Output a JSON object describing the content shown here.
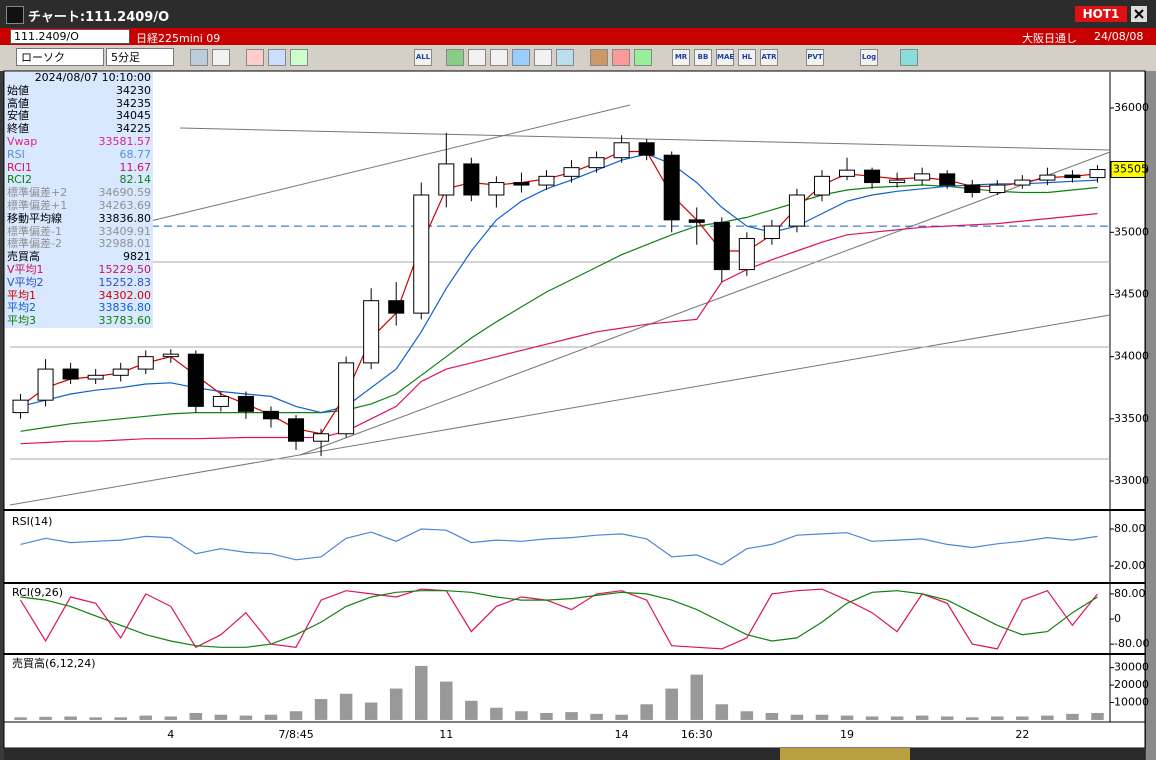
{
  "window": {
    "title": "チャート:111.2409/O",
    "hot": "HOT1"
  },
  "toolbar": {
    "symbol": "111.2409/O",
    "name": "日経225mini 09",
    "market": "大阪日通し",
    "date": "24/08/08",
    "chart_type": "ローソク",
    "interval": "5分足",
    "buttons": [
      "ALL",
      "MR",
      "BB",
      "MAE",
      "HL",
      "ATR",
      "PVT",
      "Log"
    ]
  },
  "info_panel": {
    "datetime": "2024/08/07 10:10:00",
    "rows": [
      {
        "label": "始値",
        "value": "34230",
        "color": "#000000"
      },
      {
        "label": "高値",
        "value": "34235",
        "color": "#000000"
      },
      {
        "label": "安値",
        "value": "34045",
        "color": "#000000"
      },
      {
        "label": "終値",
        "value": "34225",
        "color": "#000000"
      },
      {
        "label": "Vwap",
        "value": "33581.57",
        "color": "#e0208c"
      },
      {
        "label": "RSI",
        "value": "68.77",
        "color": "#5b8fd8"
      },
      {
        "label": "RCI1",
        "value": "11.67",
        "color": "#d01060"
      },
      {
        "label": "RCI2",
        "value": "82.14",
        "color": "#108010"
      },
      {
        "label": "標準偏差+2",
        "value": "34690.59",
        "color": "#909090"
      },
      {
        "label": "標準偏差+1",
        "value": "34263.69",
        "color": "#909090"
      },
      {
        "label": "移動平均線",
        "value": "33836.80",
        "color": "#000000"
      },
      {
        "label": "標準偏差-1",
        "value": "33409.91",
        "color": "#909090"
      },
      {
        "label": "標準偏差-2",
        "value": "32988.01",
        "color": "#909090"
      },
      {
        "label": "売買高",
        "value": "9821",
        "color": "#000000"
      },
      {
        "label": "V平均1",
        "value": "15229.50",
        "color": "#d01060"
      },
      {
        "label": "V平均2",
        "value": "15252.83",
        "color": "#3050c0"
      },
      {
        "label": "平均1",
        "value": "34302.00",
        "color": "#d00000"
      },
      {
        "label": "平均2",
        "value": "33836.80",
        "color": "#1060d0"
      },
      {
        "label": "平均3",
        "value": "33783.60",
        "color": "#108010"
      }
    ]
  },
  "chart_data": [
    {
      "type": "candlestick",
      "categories": [
        null,
        null,
        null,
        null,
        null,
        null,
        "4",
        null,
        null,
        null,
        null,
        "7/8:45",
        null,
        null,
        null,
        null,
        null,
        "11",
        null,
        null,
        null,
        null,
        null,
        null,
        "14",
        null,
        null,
        "16:30",
        null,
        null,
        null,
        null,
        null,
        "19",
        null,
        null,
        null,
        null,
        null,
        null,
        "22",
        null,
        null,
        null
      ],
      "open": [
        33550,
        33650,
        33900,
        33820,
        33850,
        33900,
        34000,
        34020,
        33600,
        33680,
        33560,
        33500,
        33320,
        33380,
        33950,
        34450,
        34350,
        35300,
        35550,
        35300,
        35400,
        35380,
        35450,
        35520,
        35600,
        35720,
        35620,
        35100,
        35080,
        34700,
        34950,
        35050,
        35300,
        35450,
        35500,
        35400,
        35420,
        35470,
        35380,
        35320,
        35380,
        35420,
        35460,
        35440
      ],
      "high": [
        33700,
        33980,
        33950,
        33900,
        33950,
        34050,
        34060,
        34050,
        33720,
        33720,
        33600,
        33530,
        33420,
        34000,
        34550,
        34600,
        35400,
        35800,
        35600,
        35450,
        35480,
        35500,
        35580,
        35650,
        35780,
        35750,
        35650,
        35200,
        35120,
        35000,
        35100,
        35350,
        35500,
        35600,
        35520,
        35480,
        35520,
        35500,
        35420,
        35420,
        35460,
        35520,
        35500,
        35540
      ],
      "low": [
        33500,
        33600,
        33780,
        33780,
        33800,
        33860,
        33950,
        33550,
        33560,
        33500,
        33430,
        33250,
        33200,
        33350,
        33900,
        34250,
        34300,
        35200,
        35250,
        35200,
        35320,
        35340,
        35400,
        35480,
        35560,
        35580,
        35000,
        34900,
        34600,
        34650,
        34900,
        35000,
        35250,
        35420,
        35350,
        35360,
        35380,
        35350,
        35280,
        35300,
        35350,
        35380,
        35400,
        35400
      ],
      "close": [
        33650,
        33900,
        33820,
        33850,
        33900,
        34000,
        34020,
        33600,
        33680,
        33560,
        33500,
        33320,
        33380,
        33950,
        34450,
        34350,
        35300,
        35550,
        35300,
        35400,
        35380,
        35450,
        35520,
        35600,
        35720,
        35620,
        35100,
        35080,
        34700,
        34950,
        35050,
        35300,
        35450,
        35500,
        35400,
        35420,
        35470,
        35380,
        35320,
        35380,
        35420,
        35460,
        35440,
        35505
      ],
      "series": [
        {
          "color": "#e01060",
          "values": [
            33300,
            33310,
            33320,
            33320,
            33330,
            33340,
            33340,
            33340,
            33345,
            33350,
            33350,
            33350,
            33350,
            33400,
            33500,
            33600,
            33800,
            33900,
            33950,
            34000,
            34050,
            34100,
            34150,
            34200,
            34230,
            34260,
            34280,
            34300,
            34600,
            34700,
            34780,
            34850,
            34920,
            34980,
            35000,
            35020,
            35040,
            35050,
            35060,
            35070,
            35090,
            35110,
            35130,
            35150
          ]
        },
        {
          "color": "#108010",
          "values": [
            33400,
            33430,
            33460,
            33480,
            33500,
            33520,
            33540,
            33550,
            33550,
            33550,
            33550,
            33550,
            33550,
            33570,
            33620,
            33700,
            33850,
            34000,
            34150,
            34280,
            34400,
            34520,
            34620,
            34720,
            34820,
            34900,
            34980,
            35050,
            35080,
            35120,
            35180,
            35240,
            35300,
            35340,
            35360,
            35370,
            35380,
            35370,
            35350,
            35330,
            35320,
            35320,
            35340,
            35360
          ]
        },
        {
          "color": "#1060d0",
          "values": [
            33600,
            33650,
            33700,
            33730,
            33750,
            33780,
            33790,
            33750,
            33720,
            33700,
            33680,
            33600,
            33550,
            33600,
            33750,
            33900,
            34200,
            34550,
            34850,
            35100,
            35250,
            35350,
            35420,
            35500,
            35580,
            35630,
            35550,
            35400,
            35200,
            35050,
            35000,
            35050,
            35150,
            35250,
            35300,
            35330,
            35350,
            35370,
            35380,
            35390,
            35390,
            35400,
            35410,
            35420
          ]
        },
        {
          "color": "#d00000",
          "values": [
            33600,
            33750,
            33820,
            33840,
            33870,
            33950,
            34000,
            33850,
            33700,
            33620,
            33530,
            33420,
            33380,
            33700,
            34150,
            34350,
            34900,
            35350,
            35400,
            35380,
            35400,
            35430,
            35480,
            35560,
            35650,
            35650,
            35300,
            35100,
            34850,
            34850,
            34980,
            35200,
            35380,
            35470,
            35450,
            35430,
            35440,
            35420,
            35370,
            35370,
            35400,
            35440,
            35450,
            35470
          ]
        }
      ],
      "hline": 35050,
      "ylim": [
        32807,
        36265
      ],
      "yticks": [
        33000,
        33500,
        34000,
        34500,
        35000,
        35500,
        36000
      ]
    },
    {
      "type": "line",
      "title": "RSI(14)",
      "series": [
        {
          "color": "#4a86d8",
          "values": [
            55,
            65,
            58,
            60,
            62,
            68,
            66,
            40,
            48,
            42,
            40,
            30,
            35,
            65,
            75,
            60,
            80,
            78,
            58,
            62,
            60,
            64,
            66,
            70,
            72,
            64,
            35,
            38,
            22,
            48,
            55,
            70,
            72,
            74,
            60,
            62,
            64,
            55,
            50,
            56,
            60,
            66,
            62,
            68
          ]
        }
      ],
      "ylim": [
        -4.3,
        102.7
      ],
      "yticks": [
        {
          "value": 80,
          "label": "80.00"
        },
        {
          "value": 20,
          "label": "20.00"
        }
      ]
    },
    {
      "type": "line",
      "title": "RCI(9,26)",
      "series": [
        {
          "color": "#e01060",
          "values": [
            60,
            -70,
            70,
            50,
            -60,
            80,
            40,
            -90,
            -50,
            20,
            -80,
            -90,
            60,
            90,
            80,
            70,
            95,
            90,
            -40,
            40,
            70,
            60,
            30,
            80,
            90,
            60,
            -85,
            -90,
            -95,
            -60,
            80,
            90,
            95,
            60,
            20,
            -40,
            80,
            50,
            -80,
            -95,
            60,
            90,
            -20,
            80
          ]
        },
        {
          "color": "#108010",
          "values": [
            70,
            60,
            40,
            10,
            -20,
            -50,
            -70,
            -85,
            -90,
            -90,
            -80,
            -50,
            -10,
            40,
            70,
            85,
            90,
            90,
            85,
            70,
            60,
            60,
            65,
            75,
            85,
            80,
            60,
            30,
            -10,
            -50,
            -70,
            -60,
            -10,
            50,
            85,
            90,
            80,
            60,
            20,
            -20,
            -50,
            -40,
            20,
            70
          ]
        }
      ],
      "ylim": [
        -105,
        105
      ],
      "yticks": [
        {
          "value": 80,
          "label": "80.00"
        },
        0,
        {
          "value": -80,
          "label": "-80.00"
        }
      ]
    },
    {
      "type": "bar",
      "title": "売買高(6,12,24)",
      "color": "#999999",
      "values": [
        1500,
        1800,
        2000,
        1500,
        1500,
        2500,
        2000,
        4000,
        3000,
        2500,
        3000,
        5000,
        12000,
        15000,
        10000,
        18000,
        31000,
        22000,
        11000,
        7000,
        5000,
        4000,
        4500,
        3500,
        3000,
        9000,
        18000,
        26000,
        9000,
        5000,
        4000,
        3000,
        3000,
        2500,
        2000,
        2000,
        2500,
        2000,
        1500,
        2000,
        2000,
        2500,
        3500,
        4000
      ],
      "ylim": [
        -600,
        36100
      ],
      "yticks": [
        10000,
        20000,
        30000
      ]
    }
  ]
}
